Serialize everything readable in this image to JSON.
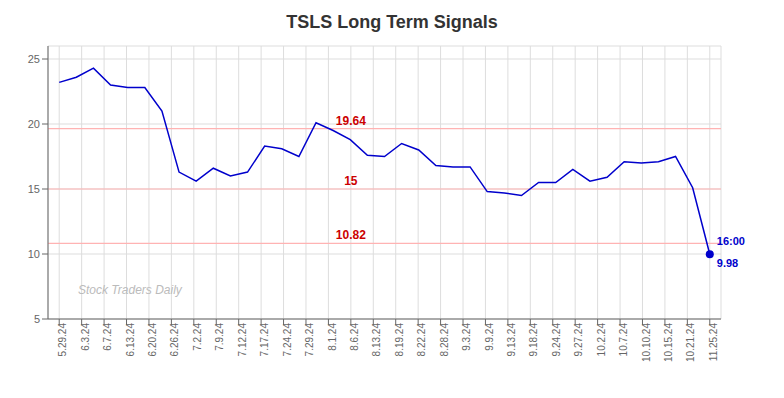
{
  "chart_data": {
    "type": "line",
    "title": "TSLS Long Term Signals",
    "x": [
      0,
      0.763158,
      1.526316,
      2.289474,
      3.052632,
      3.815789,
      4.578947,
      5.342105,
      6.105263,
      6.868421,
      7.631579,
      8.394737,
      9.157895,
      9.921053,
      10.684211,
      11.447368,
      12.210526,
      12.973684,
      13.736842,
      14.5,
      15.263158,
      16.026316,
      16.789474,
      17.552632,
      18.315789,
      19.078947,
      19.842105,
      20.605263,
      21.368421,
      22.131579,
      22.894737,
      23.657895,
      24.421053,
      25.184211,
      25.947368,
      26.710526,
      27.473684,
      28.236842,
      29
    ],
    "values": [
      23.2,
      23.6,
      24.3,
      23.0,
      22.8,
      22.8,
      21.0,
      16.3,
      15.6,
      16.6,
      16.0,
      16.3,
      18.3,
      18.1,
      17.5,
      20.1,
      19.5,
      18.8,
      17.6,
      17.5,
      18.5,
      18.0,
      16.8,
      16.7,
      16.7,
      14.8,
      14.7,
      14.5,
      15.5,
      15.5,
      16.5,
      15.6,
      15.9,
      17.1,
      17.0,
      17.1,
      17.5,
      15.1,
      9.98
    ],
    "color": "#0000cc",
    "xlim": [
      -0.5,
      29.5
    ],
    "xticks": [
      {
        "value": 0,
        "label": "5.29.24"
      },
      {
        "value": 1,
        "label": "6.3.24"
      },
      {
        "value": 2,
        "label": "6.7.24"
      },
      {
        "value": 3,
        "label": "6.13.24"
      },
      {
        "value": 4,
        "label": "6.20.24"
      },
      {
        "value": 5,
        "label": "6.26.24"
      },
      {
        "value": 6,
        "label": "7.2.24"
      },
      {
        "value": 7,
        "label": "7.9.24"
      },
      {
        "value": 8,
        "label": "7.12.24"
      },
      {
        "value": 9,
        "label": "7.17.24"
      },
      {
        "value": 10,
        "label": "7.24.24"
      },
      {
        "value": 11,
        "label": "7.29.24"
      },
      {
        "value": 12,
        "label": "8.1.24"
      },
      {
        "value": 13,
        "label": "8.6.24"
      },
      {
        "value": 14,
        "label": "8.13.24"
      },
      {
        "value": 15,
        "label": "8.19.24"
      },
      {
        "value": 16,
        "label": "8.22.24"
      },
      {
        "value": 17,
        "label": "8.28.24"
      },
      {
        "value": 18,
        "label": "9.3.24"
      },
      {
        "value": 19,
        "label": "9.9.24"
      },
      {
        "value": 20,
        "label": "9.13.24"
      },
      {
        "value": 21,
        "label": "9.18.24"
      },
      {
        "value": 22,
        "label": "9.24.24"
      },
      {
        "value": 23,
        "label": "9.27.24"
      },
      {
        "value": 24,
        "label": "10.2.24"
      },
      {
        "value": 25,
        "label": "10.7.24"
      },
      {
        "value": 26,
        "label": "10.10.24"
      },
      {
        "value": 27,
        "label": "10.15.24"
      },
      {
        "value": 28,
        "label": "10.21.24"
      },
      {
        "value": 29,
        "label": "11.25.24"
      }
    ],
    "ylim": [
      5,
      26
    ],
    "yticks": [
      5,
      10,
      15,
      20,
      25
    ],
    "grid": true,
    "hlines": [
      {
        "value": 19.64,
        "label": "19.64",
        "x": 13,
        "color": "#ffb3b3",
        "label_color": "#cc0000"
      },
      {
        "value": 15.0,
        "label": "15",
        "x": 13,
        "color": "#ffb3b3",
        "label_color": "#cc0000"
      },
      {
        "value": 10.82,
        "label": "10.82",
        "x": 13,
        "color": "#ffb3b3",
        "label_color": "#cc0000"
      }
    ],
    "annotations": [
      {
        "text": "16:00",
        "x": 29,
        "y": 9.98,
        "color": "#0000cc"
      },
      {
        "text": "9.98",
        "x": 29,
        "y": 9.98,
        "color": "#0000cc"
      },
      {
        "text": "Stock Traders Daily",
        "color": "#bbbbbb"
      }
    ]
  }
}
